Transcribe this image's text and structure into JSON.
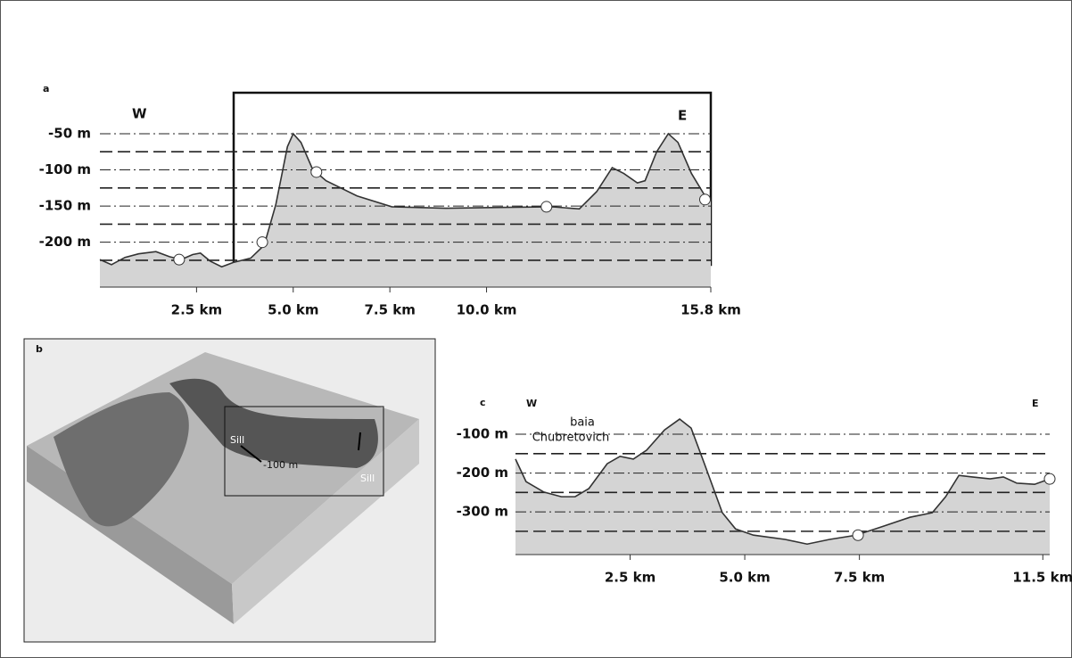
{
  "chart_data": [
    {
      "type": "area",
      "panel_label": "a",
      "left_label": "W",
      "right_label": "E",
      "color": "#d4d4d4",
      "line_color": "#333333",
      "x": [
        0,
        0.3,
        0.65,
        1.0,
        1.45,
        1.8,
        2.1,
        2.4,
        2.6,
        2.85,
        3.15,
        3.45,
        3.9,
        4.25,
        4.55,
        4.85,
        5.0,
        5.2,
        5.5,
        5.85,
        6.65,
        7.55,
        8.95,
        10.3,
        11.7,
        12.4,
        12.85,
        13.25,
        13.55,
        13.9,
        14.1,
        14.4,
        14.7,
        14.95,
        15.3,
        15.65,
        15.8
      ],
      "values": [
        -224,
        -231,
        -221,
        -216,
        -213,
        -220,
        -224,
        -217,
        -215,
        -226,
        -234,
        -228,
        -222,
        -204,
        -148,
        -68,
        -50,
        -62,
        -99,
        -115,
        -136,
        -151,
        -153,
        -152,
        -151,
        -154,
        -130,
        -97,
        -105,
        -118,
        -115,
        -75,
        -50,
        -62,
        -105,
        -136,
        -142
      ],
      "markers": {
        "x": [
          2.05,
          4.2,
          5.6,
          11.55,
          15.65
        ],
        "values": [
          -224,
          -200,
          -103,
          -151,
          -141
        ]
      },
      "xlim": [
        0,
        15.8
      ],
      "ylim": [
        -262,
        -20
      ],
      "xticks": [
        {
          "value": 2.5,
          "label": "2.5 km"
        },
        {
          "value": 5.0,
          "label": "5.0 km"
        },
        {
          "value": 7.5,
          "label": "7.5 km"
        },
        {
          "value": 10.0,
          "label": "10.0 km"
        },
        {
          "value": 15.8,
          "label": "15.8 km"
        }
      ],
      "yticks": [
        {
          "value": -50,
          "label": "-50 m"
        },
        {
          "value": -100,
          "label": "-100 m"
        },
        {
          "value": -150,
          "label": "-150 m"
        },
        {
          "value": -200,
          "label": "-200 m"
        }
      ],
      "minor_yticks": [
        -75,
        -125,
        -175,
        -225
      ],
      "grid": true
    },
    {
      "type": "area",
      "panel_label": "c",
      "left_label": "W",
      "right_label": "E",
      "annotations": [
        "baia",
        "Chubretovich"
      ],
      "color": "#d4d4d4",
      "line_color": "#333333",
      "x": [
        0,
        0.23,
        0.62,
        1.0,
        1.3,
        1.6,
        2.0,
        2.28,
        2.57,
        2.86,
        3.25,
        3.58,
        3.83,
        4.12,
        4.51,
        4.8,
        5.19,
        5.88,
        6.36,
        6.85,
        7.43,
        8.02,
        8.6,
        9.09,
        9.38,
        9.67,
        9.96,
        10.35,
        10.64,
        10.93,
        11.32,
        11.65
      ],
      "values": [
        -164,
        -222,
        -249,
        -261,
        -261,
        -240,
        -176,
        -157,
        -164,
        -141,
        -89,
        -61,
        -84,
        -176,
        -302,
        -344,
        -360,
        -371,
        -383,
        -371,
        -360,
        -337,
        -314,
        -302,
        -261,
        -206,
        -210,
        -215,
        -210,
        -226,
        -229,
        -215
      ],
      "markers": {
        "x": [
          7.47,
          11.65
        ],
        "values": [
          -360,
          -215
        ]
      },
      "xlim": [
        0,
        11.65
      ],
      "ylim": [
        -410,
        -40
      ],
      "xticks": [
        {
          "value": 2.5,
          "label": "2.5 km"
        },
        {
          "value": 5.0,
          "label": "5.0 km"
        },
        {
          "value": 7.5,
          "label": "7.5 km"
        },
        {
          "value": 11.5,
          "label": "11.5 km"
        }
      ],
      "yticks": [
        {
          "value": -100,
          "label": "-100 m"
        },
        {
          "value": -200,
          "label": "-200 m"
        },
        {
          "value": -300,
          "label": "-300 m"
        }
      ],
      "minor_yticks": [
        -150,
        -250,
        -350
      ],
      "grid": true
    }
  ],
  "panel_b": {
    "label": "b",
    "annotations": [
      "Sill",
      "-100 m",
      "Sill"
    ]
  }
}
